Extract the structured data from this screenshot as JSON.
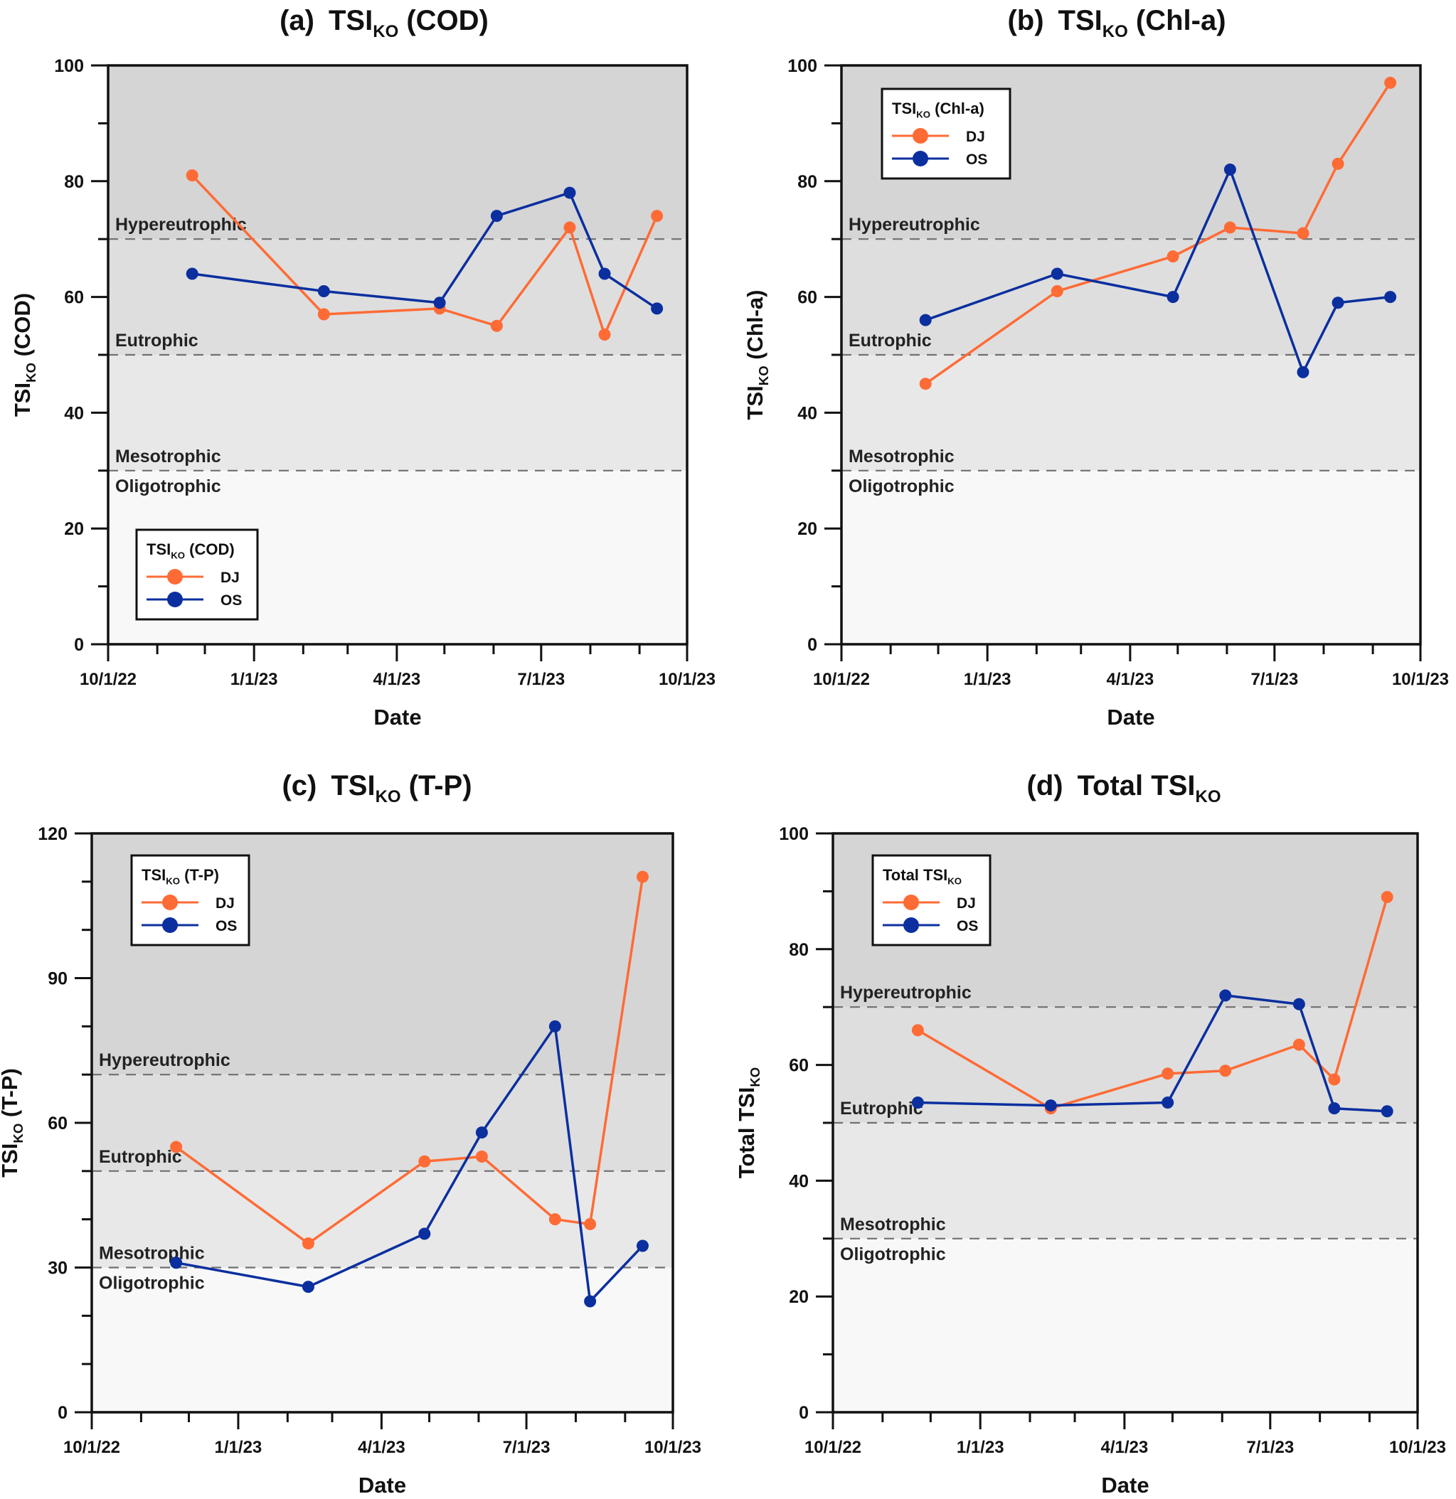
{
  "chart_data": [
    {
      "type": "line",
      "panel": "(a)",
      "title": {
        "prefix": "(a)",
        "main": "TSI",
        "sub": "KO",
        "suffix": "(COD)"
      },
      "xlabel": "Date",
      "ylabel": {
        "main": "TSI",
        "sub": "KO",
        "suffix": "(COD)"
      },
      "ylim": [
        0,
        100
      ],
      "yticks_major": [
        0,
        20,
        40,
        60,
        80,
        100
      ],
      "yticks_minor_step": 10,
      "xlim": [
        "2022-10-01",
        "2023-10-01"
      ],
      "xticks": [
        {
          "date": "2022-10-01",
          "label": "10/1/22"
        },
        {
          "date": "2023-01-01",
          "label": "1/1/23"
        },
        {
          "date": "2023-04-01",
          "label": "4/1/23"
        },
        {
          "date": "2023-07-01",
          "label": "7/1/23"
        },
        {
          "date": "2023-10-01",
          "label": "10/1/23"
        }
      ],
      "x": [
        "2022-11-23",
        "2023-02-14",
        "2023-04-28",
        "2023-06-03",
        "2023-07-19",
        "2023-08-10",
        "2023-09-12"
      ],
      "series": [
        {
          "name": "DJ",
          "color": "#ff6b35",
          "values": [
            81,
            57,
            58,
            55,
            72,
            53.5,
            74
          ]
        },
        {
          "name": "OS",
          "color": "#0b2f9f",
          "values": [
            64,
            61,
            59,
            74,
            78,
            64,
            58
          ]
        }
      ],
      "legend": {
        "title": {
          "main": "TSI",
          "sub": "KO",
          "suffix": "(COD)"
        },
        "position": "bottom-left"
      },
      "thresholds": [
        {
          "value": 70,
          "label": "Hypereutrophic",
          "label_side": "above"
        },
        {
          "value": 50,
          "label": "Eutrophic",
          "label_side": "above"
        },
        {
          "value": 30,
          "label": "Mesotrophic",
          "label_side": "above"
        },
        {
          "value": 30,
          "label": "Oligotrophic",
          "label_side": "below"
        }
      ],
      "grid": false
    },
    {
      "type": "line",
      "panel": "(b)",
      "title": {
        "prefix": "(b)",
        "main": "TSI",
        "sub": "KO",
        "suffix": "(Chl-a)"
      },
      "xlabel": "Date",
      "ylabel": {
        "main": "TSI",
        "sub": "KO",
        "suffix": "(Chl-a)"
      },
      "ylim": [
        0,
        100
      ],
      "yticks_major": [
        0,
        20,
        40,
        60,
        80,
        100
      ],
      "yticks_minor_step": 10,
      "xlim": [
        "2022-10-01",
        "2023-10-01"
      ],
      "xticks": [
        {
          "date": "2022-10-01",
          "label": "10/1/22"
        },
        {
          "date": "2023-01-01",
          "label": "1/1/23"
        },
        {
          "date": "2023-04-01",
          "label": "4/1/23"
        },
        {
          "date": "2023-07-01",
          "label": "7/1/23"
        },
        {
          "date": "2023-10-01",
          "label": "10/1/23"
        }
      ],
      "x": [
        "2022-11-23",
        "2023-02-14",
        "2023-04-28",
        "2023-06-03",
        "2023-07-19",
        "2023-08-10",
        "2023-09-12"
      ],
      "series": [
        {
          "name": "DJ",
          "color": "#ff6b35",
          "values": [
            45,
            61,
            67,
            72,
            71,
            83,
            97
          ]
        },
        {
          "name": "OS",
          "color": "#0b2f9f",
          "values": [
            56,
            64,
            60,
            82,
            47,
            59,
            60
          ]
        }
      ],
      "legend": {
        "title": {
          "main": "TSI",
          "sub": "KO",
          "suffix": "(Chl-a)"
        },
        "position": "top-left"
      },
      "thresholds": [
        {
          "value": 70,
          "label": "Hypereutrophic",
          "label_side": "above"
        },
        {
          "value": 50,
          "label": "Eutrophic",
          "label_side": "above"
        },
        {
          "value": 30,
          "label": "Mesotrophic",
          "label_side": "above"
        },
        {
          "value": 30,
          "label": "Oligotrophic",
          "label_side": "below"
        }
      ],
      "grid": false
    },
    {
      "type": "line",
      "panel": "(c)",
      "title": {
        "prefix": "(c)",
        "main": "TSI",
        "sub": "KO",
        "suffix": "(T-P)"
      },
      "xlabel": "Date",
      "ylabel": {
        "main": "TSI",
        "sub": "KO",
        "suffix": "(T-P)"
      },
      "ylim": [
        0,
        120
      ],
      "yticks_major": [
        0,
        30,
        60,
        90,
        120
      ],
      "yticks_minor_step": 10,
      "xlim": [
        "2022-10-01",
        "2023-10-01"
      ],
      "xticks": [
        {
          "date": "2022-10-01",
          "label": "10/1/22"
        },
        {
          "date": "2023-01-01",
          "label": "1/1/23"
        },
        {
          "date": "2023-04-01",
          "label": "4/1/23"
        },
        {
          "date": "2023-07-01",
          "label": "7/1/23"
        },
        {
          "date": "2023-10-01",
          "label": "10/1/23"
        }
      ],
      "x": [
        "2022-11-23",
        "2023-02-14",
        "2023-04-28",
        "2023-06-03",
        "2023-07-19",
        "2023-08-10",
        "2023-09-12"
      ],
      "series": [
        {
          "name": "DJ",
          "color": "#ff6b35",
          "values": [
            55,
            35,
            52,
            53,
            40,
            39,
            111
          ]
        },
        {
          "name": "OS",
          "color": "#0b2f9f",
          "values": [
            31,
            26,
            37,
            58,
            80,
            23,
            34.5
          ]
        }
      ],
      "legend": {
        "title": {
          "main": "TSI",
          "sub": "KO",
          "suffix": "(T-P)"
        },
        "position": "top-left"
      },
      "thresholds": [
        {
          "value": 70,
          "label": "Hypereutrophic",
          "label_side": "above"
        },
        {
          "value": 50,
          "label": "Eutrophic",
          "label_side": "above"
        },
        {
          "value": 30,
          "label": "Mesotrophic",
          "label_side": "above"
        },
        {
          "value": 30,
          "label": "Oligotrophic",
          "label_side": "below"
        }
      ],
      "grid": false
    },
    {
      "type": "line",
      "panel": "(d)",
      "title": {
        "prefix": "(d)",
        "main": "Total TSI",
        "sub": "KO",
        "suffix": ""
      },
      "xlabel": "Date",
      "ylabel": {
        "main": "Total TSI",
        "sub": "KO",
        "suffix": ""
      },
      "ylim": [
        0,
        100
      ],
      "yticks_major": [
        0,
        20,
        40,
        60,
        80,
        100
      ],
      "yticks_minor_step": 10,
      "xlim": [
        "2022-10-01",
        "2023-10-01"
      ],
      "xticks": [
        {
          "date": "2022-10-01",
          "label": "10/1/22"
        },
        {
          "date": "2023-01-01",
          "label": "1/1/23"
        },
        {
          "date": "2023-04-01",
          "label": "4/1/23"
        },
        {
          "date": "2023-07-01",
          "label": "7/1/23"
        },
        {
          "date": "2023-10-01",
          "label": "10/1/23"
        }
      ],
      "x": [
        "2022-11-23",
        "2023-02-14",
        "2023-04-28",
        "2023-06-03",
        "2023-07-19",
        "2023-08-10",
        "2023-09-12"
      ],
      "series": [
        {
          "name": "DJ",
          "color": "#ff6b35",
          "values": [
            66,
            52.5,
            58.5,
            59,
            63.5,
            57.5,
            89
          ]
        },
        {
          "name": "OS",
          "color": "#0b2f9f",
          "values": [
            53.5,
            53,
            53.5,
            72,
            70.5,
            52.5,
            52
          ]
        }
      ],
      "legend": {
        "title": {
          "main": "Total TSI",
          "sub": "KO",
          "suffix": ""
        },
        "position": "top-left"
      },
      "thresholds": [
        {
          "value": 70,
          "label": "Hypereutrophic",
          "label_side": "above"
        },
        {
          "value": 50,
          "label": "Eutrophic",
          "label_side": "above"
        },
        {
          "value": 30,
          "label": "Mesotrophic",
          "label_side": "above"
        },
        {
          "value": 30,
          "label": "Oligotrophic",
          "label_side": "below"
        }
      ],
      "grid": false
    }
  ],
  "zone_colors": {
    "hypereutrophic": "#d5d5d5",
    "eutrophic": "#dedede",
    "mesotrophic": "#e8e8e8",
    "oligotrophic": "#f8f8f8"
  }
}
